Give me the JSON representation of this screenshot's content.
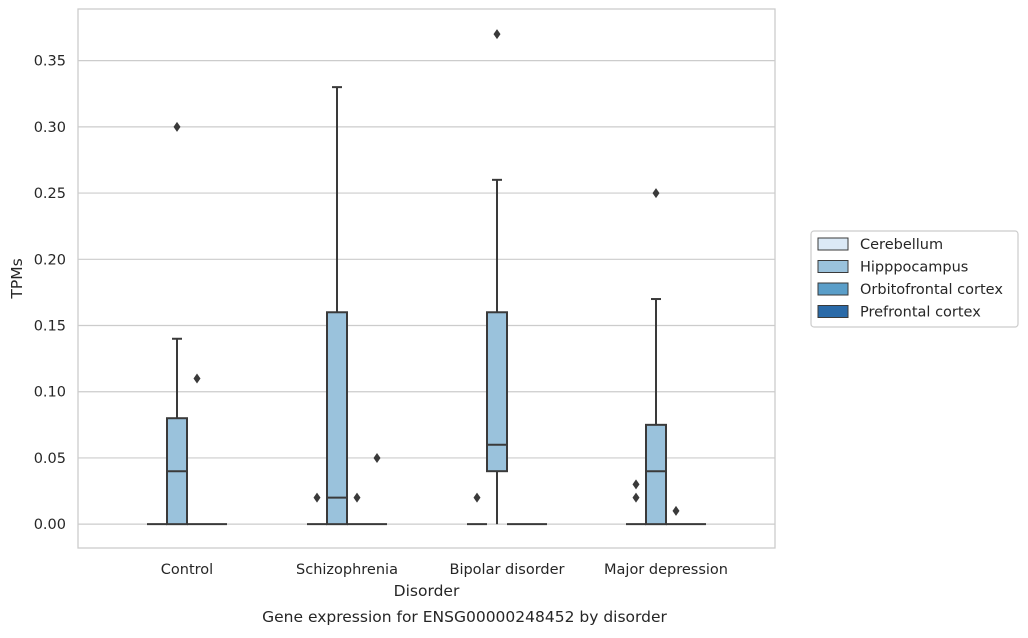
{
  "chart_data": {
    "type": "box",
    "title": "",
    "caption": "Gene expression for ENSG00000248452 by disorder",
    "xlabel": "Disorder",
    "ylabel": "TPMs",
    "ylim": [
      -0.018,
      0.389
    ],
    "yticks": [
      0.0,
      0.05,
      0.1,
      0.15,
      0.2,
      0.25,
      0.3,
      0.35
    ],
    "ytick_labels": [
      "0.00",
      "0.05",
      "0.10",
      "0.15",
      "0.20",
      "0.25",
      "0.30",
      "0.35"
    ],
    "grid": "horizontal",
    "legend_position": "right",
    "categories": [
      "Control",
      "Schizophrenia",
      "Bipolar disorder",
      "Major depression"
    ],
    "series": [
      {
        "name": "Cerebellum",
        "color": "#dbe9f6",
        "boxes": [
          {
            "category": "Control",
            "whisker_low": 0,
            "q1": 0,
            "median": 0,
            "q3": 0,
            "whisker_high": 0,
            "outliers": []
          },
          {
            "category": "Schizophrenia",
            "whisker_low": 0,
            "q1": 0,
            "median": 0,
            "q3": 0,
            "whisker_high": 0,
            "outliers": [
              0.02
            ]
          },
          {
            "category": "Bipolar disorder",
            "whisker_low": 0,
            "q1": 0,
            "median": 0,
            "q3": 0,
            "whisker_high": 0,
            "outliers": [
              0.02
            ]
          },
          {
            "category": "Major depression",
            "whisker_low": 0,
            "q1": 0,
            "median": 0,
            "q3": 0,
            "whisker_high": 0,
            "outliers": [
              0.02,
              0.03
            ]
          }
        ]
      },
      {
        "name": "Hipppocampus",
        "color": "#9ac2dc",
        "boxes": [
          {
            "category": "Control",
            "whisker_low": 0,
            "q1": 0,
            "median": 0.04,
            "q3": 0.08,
            "whisker_high": 0.14,
            "outliers": [
              0.3
            ]
          },
          {
            "category": "Schizophrenia",
            "whisker_low": 0,
            "q1": 0,
            "median": 0.02,
            "q3": 0.16,
            "whisker_high": 0.33,
            "outliers": []
          },
          {
            "category": "Bipolar disorder",
            "whisker_low": 0,
            "q1": 0.04,
            "median": 0.06,
            "q3": 0.16,
            "whisker_high": 0.26,
            "outliers": [
              0.37
            ]
          },
          {
            "category": "Major depression",
            "whisker_low": 0,
            "q1": 0,
            "median": 0.04,
            "q3": 0.075,
            "whisker_high": 0.17,
            "outliers": [
              0.25
            ]
          }
        ]
      },
      {
        "name": "Orbitofrontal cortex",
        "color": "#5a9ec9",
        "boxes": [
          {
            "category": "Control",
            "whisker_low": 0,
            "q1": 0,
            "median": 0,
            "q3": 0,
            "whisker_high": 0,
            "outliers": [
              0.11
            ]
          },
          {
            "category": "Schizophrenia",
            "whisker_low": 0,
            "q1": 0,
            "median": 0,
            "q3": 0,
            "whisker_high": 0,
            "outliers": [
              0.02
            ]
          },
          {
            "category": "Bipolar disorder",
            "whisker_low": 0,
            "q1": 0,
            "median": 0,
            "q3": 0,
            "whisker_high": 0,
            "outliers": []
          },
          {
            "category": "Major depression",
            "whisker_low": 0,
            "q1": 0,
            "median": 0,
            "q3": 0,
            "whisker_high": 0,
            "outliers": [
              0.01
            ]
          }
        ]
      },
      {
        "name": "Prefrontal cortex",
        "color": "#2a6aa8",
        "boxes": [
          {
            "category": "Control",
            "whisker_low": 0,
            "q1": 0,
            "median": 0,
            "q3": 0,
            "whisker_high": 0,
            "outliers": []
          },
          {
            "category": "Schizophrenia",
            "whisker_low": 0,
            "q1": 0,
            "median": 0,
            "q3": 0,
            "whisker_high": 0,
            "outliers": [
              0.05
            ]
          },
          {
            "category": "Bipolar disorder",
            "whisker_low": 0,
            "q1": 0,
            "median": 0,
            "q3": 0,
            "whisker_high": 0,
            "outliers": []
          },
          {
            "category": "Major depression",
            "whisker_low": 0,
            "q1": 0,
            "median": 0,
            "q3": 0,
            "whisker_high": 0,
            "outliers": []
          }
        ]
      }
    ]
  },
  "style": {
    "line_color": "#3a3a3a",
    "grid_color": "#cccccc",
    "frame_color": "#cccccc"
  }
}
